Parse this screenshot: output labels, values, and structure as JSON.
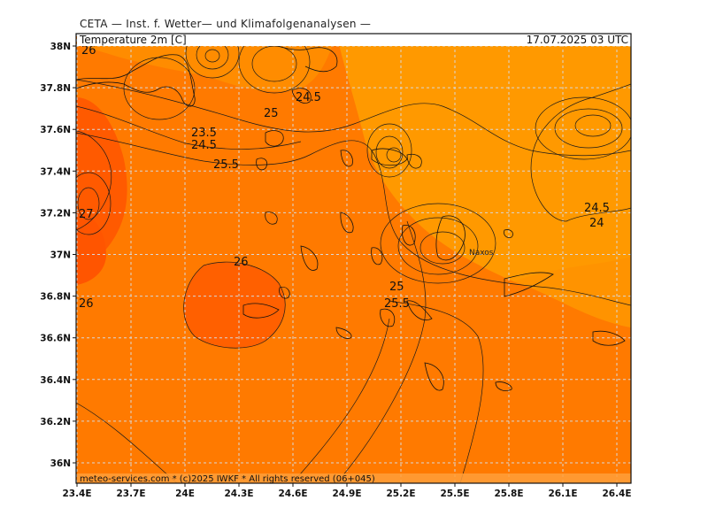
{
  "provider": "CETA — Inst. f. Wetter— und Klimafolgenanalysen —",
  "header": {
    "variable": "Temperature 2m [C]",
    "datetime": "17.07.2025 03 UTC"
  },
  "footer": "meteo-services.com * (c)2025 IWKF * All rights reserved (06+045)",
  "map": {
    "x_ticks": [
      "23.4E",
      "23.7E",
      "24E",
      "24.3E",
      "24.6E",
      "24.9E",
      "25.2E",
      "25.5E",
      "25.8E",
      "26.1E",
      "26.4E"
    ],
    "y_ticks": [
      "38N",
      "37.8N",
      "37.6N",
      "37.4N",
      "37.2N",
      "37N",
      "36.8N",
      "36.6N",
      "36.4N",
      "36.2N",
      "36N"
    ],
    "place_labels": [
      {
        "name": "naxos",
        "text": "Naxos"
      },
      {
        "name": "topleft-town",
        "text": "26"
      }
    ],
    "contour_labels": [
      {
        "id": "c1",
        "text": "24.5"
      },
      {
        "id": "c2",
        "text": "25"
      },
      {
        "id": "c3",
        "text": "23.5"
      },
      {
        "id": "c4",
        "text": "24.5"
      },
      {
        "id": "c5",
        "text": "25.5"
      },
      {
        "id": "c6",
        "text": "27"
      },
      {
        "id": "c7",
        "text": "26"
      },
      {
        "id": "c8",
        "text": "26"
      },
      {
        "id": "c9",
        "text": "25"
      },
      {
        "id": "c10",
        "text": "25.5"
      },
      {
        "id": "c11",
        "text": "24.5"
      },
      {
        "id": "c12",
        "text": "24"
      }
    ],
    "colors": {
      "warm_orange": "#ff7a00",
      "light_orange": "#ff9900",
      "hot_orange": "#ff5a00",
      "grid": "#d8d8d8"
    }
  }
}
